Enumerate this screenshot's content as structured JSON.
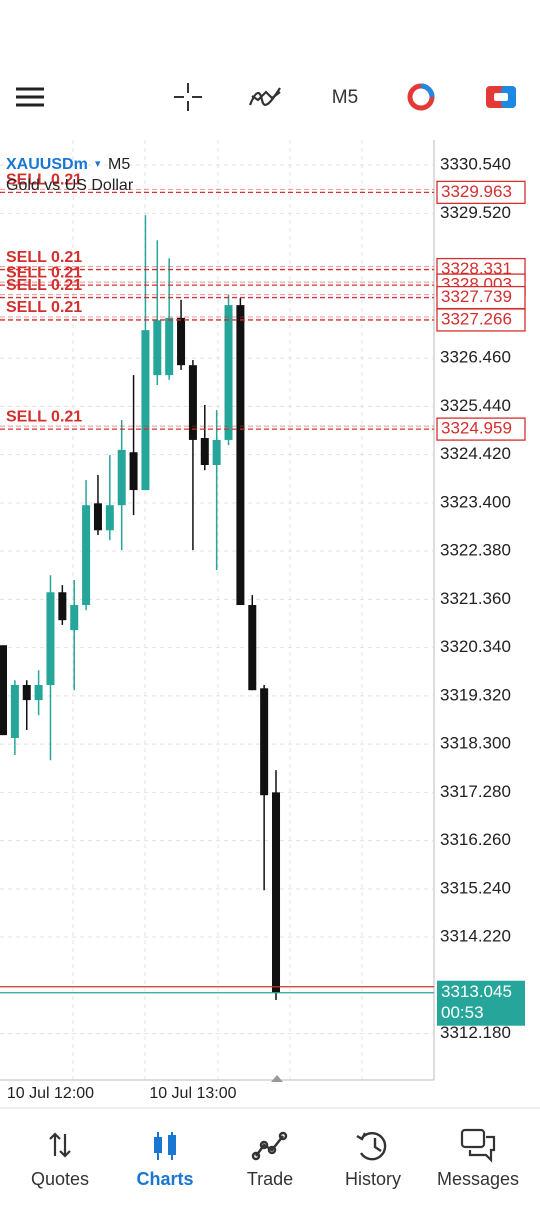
{
  "chart_data": {
    "type": "candlestick",
    "symbol": "XAUUSDm",
    "timeframe": "M5",
    "description": "Gold vs US Dollar",
    "categories": [
      null,
      null,
      null,
      null,
      "10 Jul 12:00",
      null,
      null,
      null,
      null,
      null,
      null,
      null,
      null,
      null,
      null,
      null,
      "10 Jul 13:00",
      null,
      null,
      null,
      null,
      null,
      null,
      null
    ],
    "open": [
      3320.39,
      3318.43,
      3319.55,
      3319.23,
      3319.55,
      3321.51,
      3320.71,
      3321.24,
      3323.39,
      3322.82,
      3323.35,
      3324.47,
      3323.67,
      3326.1,
      3326.1,
      3327.31,
      3326.31,
      3324.77,
      3324.2,
      3324.73,
      3327.58,
      3321.24,
      3319.48,
      3317.28
    ],
    "high": [
      3320.39,
      3319.65,
      3319.65,
      3319.86,
      3321.87,
      3321.66,
      3321.77,
      3323.88,
      3323.99,
      3324.41,
      3325.15,
      3326.1,
      3329.48,
      3328.95,
      3328.57,
      3327.69,
      3326.42,
      3325.47,
      3325.36,
      3327.79,
      3327.73,
      3321.45,
      3319.55,
      3317.75
    ],
    "low": [
      3318.49,
      3318.07,
      3318.6,
      3318.91,
      3317.96,
      3320.82,
      3319.44,
      3321.13,
      3322.72,
      3322.61,
      3322.4,
      3323.14,
      3323.67,
      3325.89,
      3326.0,
      3326.21,
      3322.4,
      3324.09,
      3321.98,
      3324.62,
      3321.24,
      3319.44,
      3315.21,
      3312.89
    ],
    "close": [
      3318.49,
      3319.55,
      3319.23,
      3319.55,
      3321.51,
      3320.92,
      3321.24,
      3323.35,
      3322.82,
      3323.35,
      3324.52,
      3323.67,
      3327.05,
      3327.26,
      3327.31,
      3326.31,
      3324.73,
      3324.2,
      3324.73,
      3327.58,
      3321.24,
      3319.44,
      3317.22,
      3313.05
    ],
    "up_color": "#26a69a",
    "down_color": "#111111",
    "ylim": [
      3311.2,
      3331.07
    ],
    "yticks": [
      {
        "value": 3330.54,
        "label": "3330.540"
      },
      {
        "value": 3329.52,
        "label": "3329.520"
      },
      {
        "value": 3326.46,
        "label": "3326.460"
      },
      {
        "value": 3325.44,
        "label": "3325.440"
      },
      {
        "value": 3324.42,
        "label": "3324.420"
      },
      {
        "value": 3323.4,
        "label": "3323.400"
      },
      {
        "value": 3322.38,
        "label": "3322.380"
      },
      {
        "value": 3321.36,
        "label": "3321.360"
      },
      {
        "value": 3320.34,
        "label": "3320.340"
      },
      {
        "value": 3319.32,
        "label": "3319.320"
      },
      {
        "value": 3318.3,
        "label": "3318.300"
      },
      {
        "value": 3317.28,
        "label": "3317.280"
      },
      {
        "value": 3316.26,
        "label": "3316.260"
      },
      {
        "value": 3315.24,
        "label": "3315.240"
      },
      {
        "value": 3314.22,
        "label": "3314.220"
      },
      {
        "value": 3312.18,
        "label": "3312.180"
      }
    ],
    "grid": true,
    "orders": [
      {
        "label": "SELL 0.21",
        "price": 3329.963
      },
      {
        "label": "SELL 0.21",
        "price": 3328.331
      },
      {
        "label": "SELL 0.21",
        "price": 3328.003
      },
      {
        "label": "SELL 0.21",
        "price": 3327.739
      },
      {
        "label": "SELL 0.21",
        "price": 3327.266
      },
      {
        "label": "SELL 0.21",
        "price": 3324.959
      }
    ],
    "order_color": "#d32f2f",
    "current_price": 3313.045,
    "countdown": "00:53"
  },
  "nav": {
    "items": [
      "Quotes",
      "Charts",
      "Trade",
      "History",
      "Messages"
    ],
    "active": 1
  }
}
